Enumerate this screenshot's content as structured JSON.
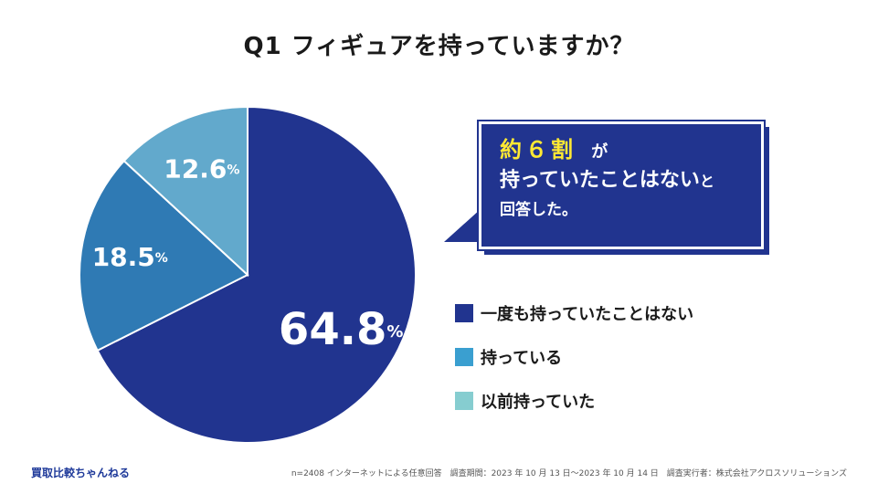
{
  "title": "Q1 フィギュアを持っていますか？",
  "callout": {
    "highlight": "約６割",
    "line1_suffix": "が",
    "line2": "持っていたことはない",
    "line2_suffix": "と",
    "line3": "回答した。"
  },
  "chart_data": {
    "type": "pie",
    "title": "Q1 フィギュアを持っていますか？",
    "slices": [
      {
        "label": "一度も持っていたことはない",
        "value": 64.8,
        "display": "64.8",
        "color": "#21348f"
      },
      {
        "label": "持っている",
        "value": 18.5,
        "display": "18.5",
        "color": "#2f7ab4"
      },
      {
        "label": "以前持っていた",
        "value": 12.6,
        "display": "12.6",
        "color": "#62a9cc"
      }
    ],
    "unit": "%"
  },
  "legend": [
    {
      "label": "一度も持っていたことはない",
      "color": "#21348f"
    },
    {
      "label": "持っている",
      "color": "#3a9fd0"
    },
    {
      "label": "以前持っていた",
      "color": "#86cdd0"
    }
  ],
  "footer": {
    "brand": "買取比較ちゃんねる",
    "note": "n=2408 インターネットによる任意回答　調査期間：2023 年 10 月 13 日〜2023 年 10 月 14 日　調査実行者：株式会社アクロスソリューションズ"
  }
}
